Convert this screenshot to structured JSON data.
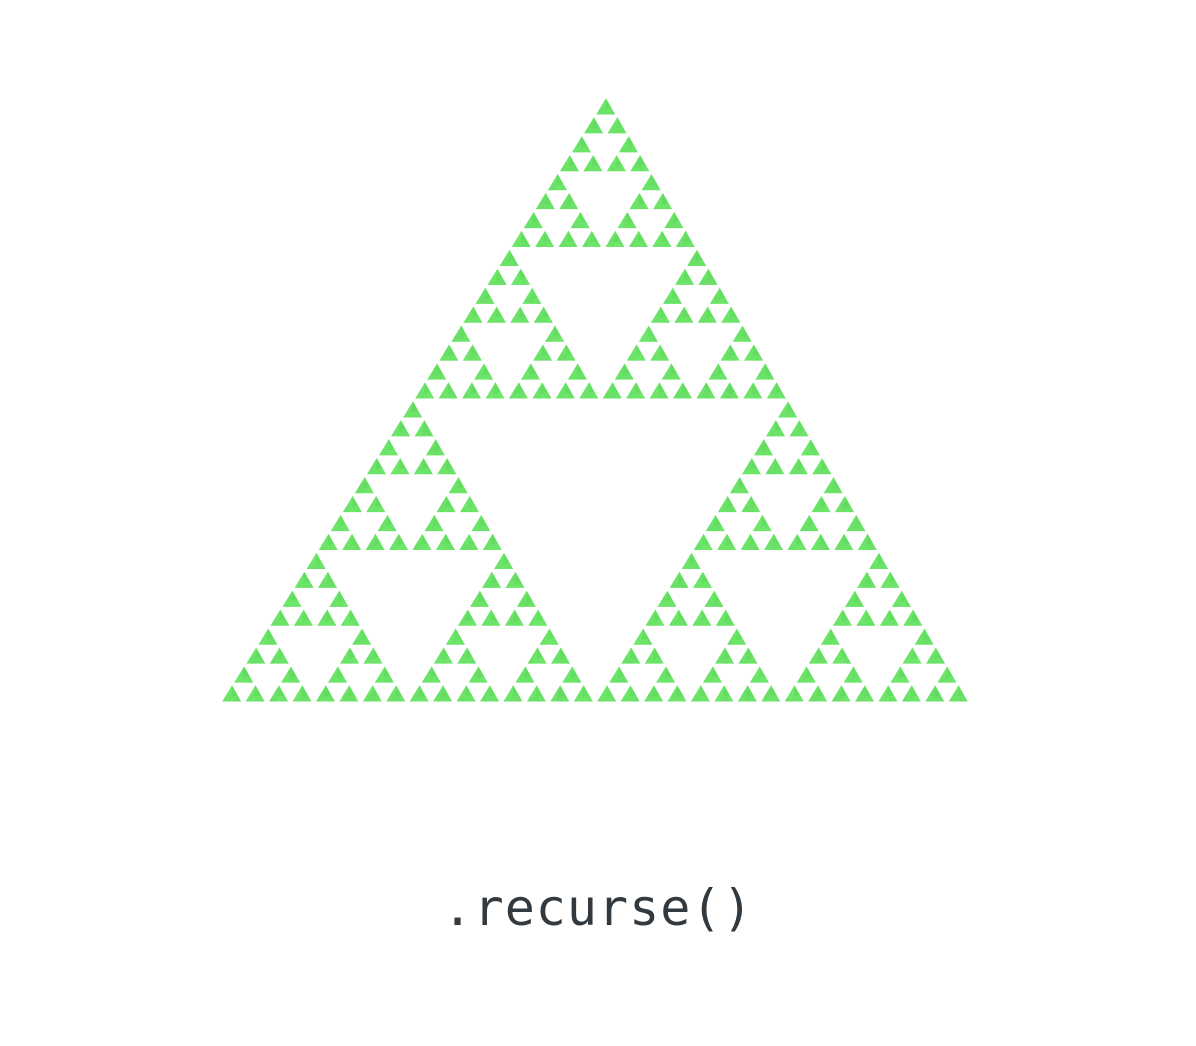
{
  "caption": {
    "text": ".recurse()"
  },
  "fractal": {
    "shape": "sierpinski-triangle",
    "depth": 5,
    "orientation": "point-up"
  },
  "colors": {
    "background": "#ffffff",
    "triangle_fill": "#6ee86a",
    "triangle_shade": "#4fd64c",
    "caption_text": "#333a3f"
  }
}
